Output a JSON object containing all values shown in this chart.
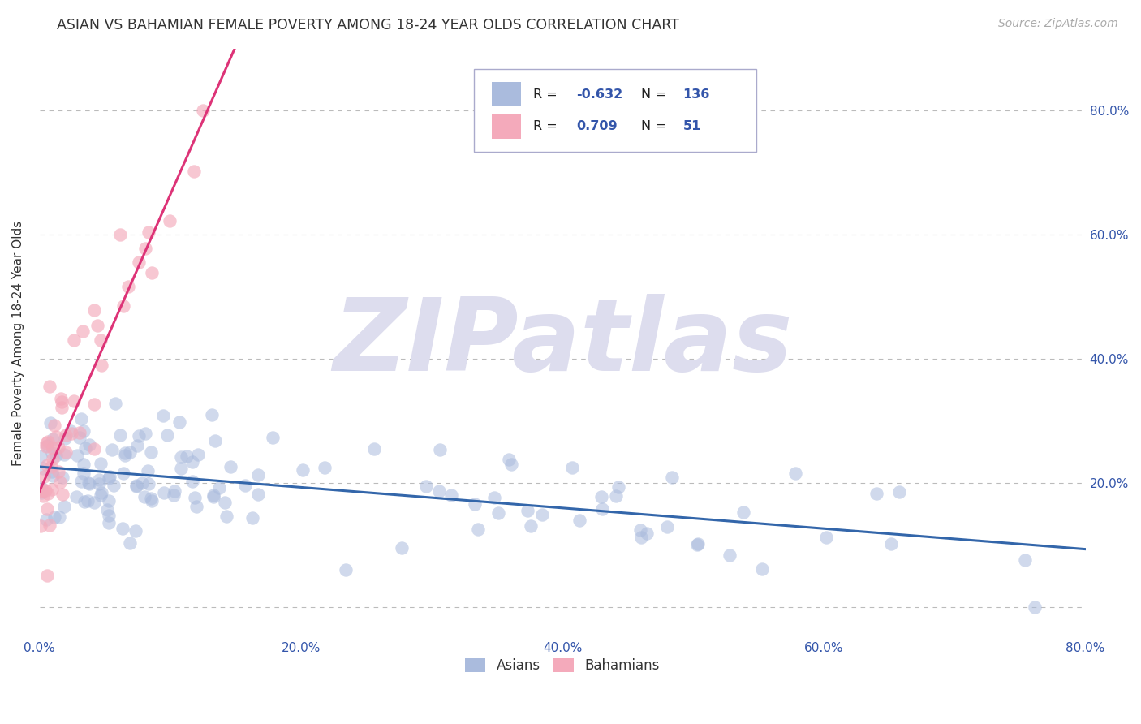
{
  "title": "ASIAN VS BAHAMIAN FEMALE POVERTY AMONG 18-24 YEAR OLDS CORRELATION CHART",
  "source": "Source: ZipAtlas.com",
  "ylabel": "Female Poverty Among 18-24 Year Olds",
  "xlim": [
    0.0,
    0.8
  ],
  "ylim": [
    -0.05,
    0.9
  ],
  "background_color": "#ffffff",
  "grid_color": "#bbbbbb",
  "watermark": "ZIPatlas",
  "legend_R1": "-0.632",
  "legend_N1": "136",
  "legend_R2": "0.709",
  "legend_N2": "51",
  "blue_color": "#aabbdd",
  "pink_color": "#f4aabb",
  "blue_line_color": "#3366aa",
  "pink_line_color": "#dd3377",
  "title_color": "#333333",
  "axis_label_color": "#333333",
  "tick_color": "#3355aa",
  "watermark_color": "#ddddee",
  "asian_seed": 12345,
  "bahamian_seed": 99887
}
